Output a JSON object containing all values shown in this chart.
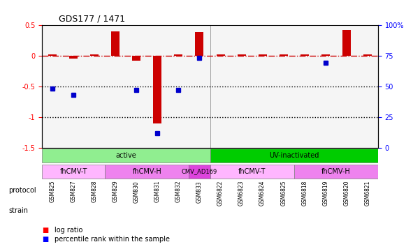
{
  "title": "GDS177 / 1471",
  "samples": [
    "GSM825",
    "GSM827",
    "GSM828",
    "GSM829",
    "GSM830",
    "GSM831",
    "GSM832",
    "GSM833",
    "GSM6822",
    "GSM6823",
    "GSM6824",
    "GSM6825",
    "GSM6818",
    "GSM6819",
    "GSM6820",
    "GSM6821"
  ],
  "log_ratio": [
    0.0,
    -0.05,
    0.0,
    0.4,
    -0.08,
    -1.1,
    0.02,
    0.38,
    0.0,
    0.0,
    0.0,
    0.0,
    0.0,
    0.0,
    0.42,
    0.0
  ],
  "pct_rank": [
    48,
    43,
    null,
    null,
    47,
    12,
    47,
    73,
    null,
    null,
    null,
    null,
    null,
    69,
    null,
    null
  ],
  "ylim_left": [
    -1.5,
    0.5
  ],
  "ylim_right": [
    0,
    100
  ],
  "protocol_groups": [
    {
      "label": "active",
      "start": 0,
      "end": 8,
      "color": "#90EE90"
    },
    {
      "label": "UV-inactivated",
      "start": 8,
      "end": 16,
      "color": "#00CC00"
    }
  ],
  "strain_groups": [
    {
      "label": "fhCMV-T",
      "start": 0,
      "end": 3,
      "color": "#FFB6FF"
    },
    {
      "label": "fhCMV-H",
      "start": 3,
      "end": 7,
      "color": "#EE82EE"
    },
    {
      "label": "CMV_AD169",
      "start": 7,
      "end": 8,
      "color": "#DD44DD"
    },
    {
      "label": "fhCMV-T",
      "start": 8,
      "end": 12,
      "color": "#FFB6FF"
    },
    {
      "label": "fhCMV-H",
      "start": 12,
      "end": 16,
      "color": "#EE82EE"
    }
  ],
  "bar_color": "#CC0000",
  "dot_color": "#0000CC",
  "hline_color": "#CC0000",
  "dotted_line_color": "#000000",
  "background_color": "#ffffff"
}
